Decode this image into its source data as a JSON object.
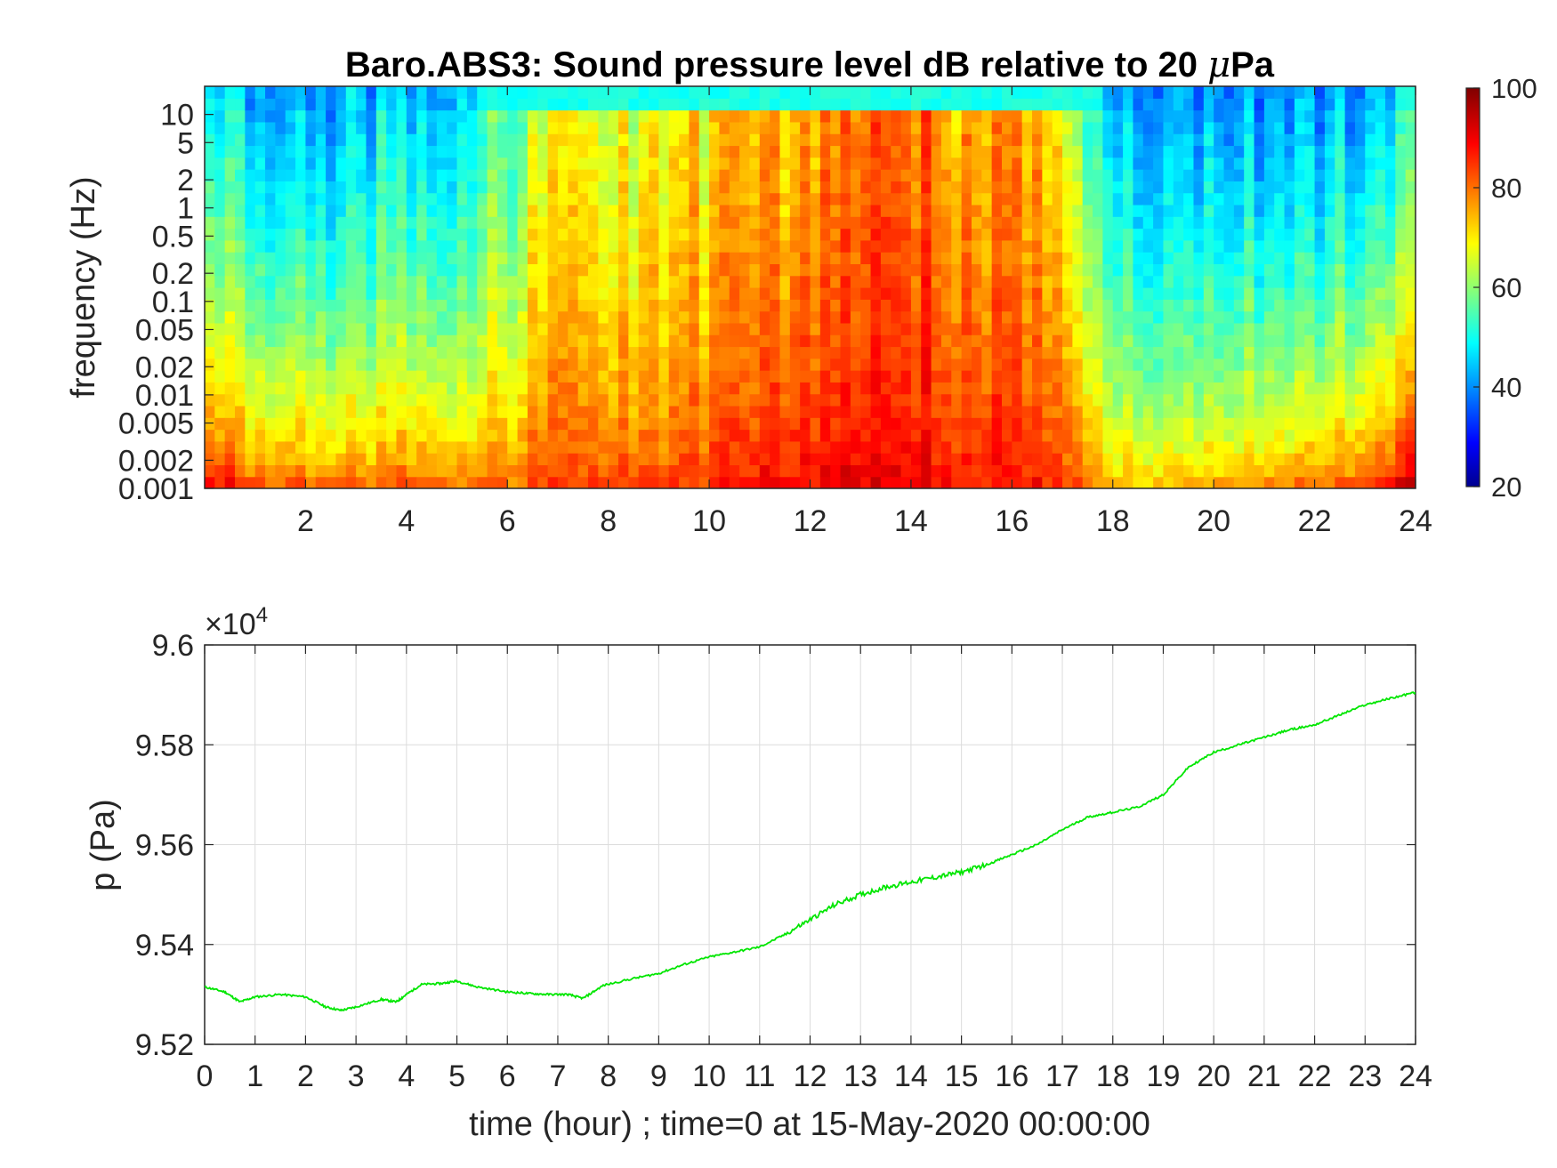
{
  "chart_data": [
    {
      "type": "heatmap",
      "title_main": "Baro.ABS3: Sound pressure level dB relative to 20 ",
      "title_mu": "μ",
      "title_unit": "Pa",
      "ylabel": "frequency (Hz)",
      "xlabel": "",
      "x_ticks": [
        "2",
        "4",
        "6",
        "8",
        "10",
        "12",
        "14",
        "16",
        "18",
        "20",
        "22",
        "24"
      ],
      "x_tick_values": [
        2,
        4,
        6,
        8,
        10,
        12,
        14,
        16,
        18,
        20,
        22,
        24
      ],
      "xlim": [
        0,
        24
      ],
      "y_scale": "log",
      "y_ticks": [
        "10",
        "5",
        "2",
        "1",
        "0.5",
        "0.2",
        "0.1",
        "0.05",
        "0.02",
        "0.01",
        "0.005",
        "0.002",
        "0.001"
      ],
      "y_tick_values": [
        10,
        5,
        2,
        1,
        0.5,
        0.2,
        0.1,
        0.05,
        0.02,
        0.01,
        0.005,
        0.002,
        0.001
      ],
      "ylim": [
        0.001,
        20
      ],
      "colorbar": {
        "ticks": [
          "100",
          "80",
          "60",
          "40",
          "20"
        ],
        "tick_values": [
          100,
          80,
          60,
          40,
          20
        ],
        "range": [
          20,
          100
        ],
        "colormap": "jet"
      },
      "hourly_overview": {
        "description_hours": [
          0,
          1,
          2,
          3,
          4,
          5,
          6,
          7,
          8,
          9,
          10,
          11,
          12,
          13,
          14,
          15,
          16,
          17,
          18,
          19,
          20,
          21,
          22,
          23,
          24
        ],
        "high_frequency_level_dB": [
          50,
          45,
          45,
          45,
          45,
          48,
          55,
          72,
          65,
          68,
          70,
          72,
          78,
          80,
          80,
          78,
          76,
          70,
          48,
          42,
          42,
          42,
          42,
          44,
          50
        ],
        "low_frequency_level_dB": [
          95,
          88,
          86,
          85,
          86,
          84,
          84,
          88,
          86,
          86,
          88,
          90,
          92,
          92,
          92,
          90,
          90,
          88,
          80,
          78,
          80,
          82,
          84,
          90,
          98
        ]
      }
    },
    {
      "type": "line",
      "ylabel": "p (Pa)",
      "xlabel": "time (hour) ; time=0 at 15-May-2020 00:00:00",
      "exponent_label": "×10",
      "exponent_power": "4",
      "x_ticks": [
        "0",
        "1",
        "2",
        "3",
        "4",
        "5",
        "6",
        "7",
        "8",
        "9",
        "10",
        "11",
        "12",
        "13",
        "14",
        "15",
        "16",
        "17",
        "18",
        "19",
        "20",
        "21",
        "22",
        "23",
        "24"
      ],
      "y_ticks": [
        "9.6",
        "9.58",
        "9.56",
        "9.54",
        "9.52"
      ],
      "y_tick_values": [
        96000,
        95800,
        95600,
        95400,
        95200
      ],
      "xlim": [
        0,
        24
      ],
      "ylim": [
        95200,
        96000
      ],
      "grid": true,
      "series": [
        {
          "color": "#00e600",
          "x": [
            0,
            0.4,
            0.7,
            1.0,
            1.5,
            2.0,
            2.4,
            2.7,
            3.0,
            3.5,
            3.8,
            4.0,
            4.3,
            4.7,
            5.0,
            5.4,
            6.0,
            6.4,
            6.8,
            7.2,
            7.5,
            7.9,
            8.5,
            9.0,
            9.5,
            10.0,
            10.5,
            11.0,
            11.5,
            12.0,
            12.5,
            13.0,
            13.5,
            14.0,
            14.5,
            15.0,
            15.5,
            16.0,
            16.5,
            17.0,
            17.5,
            18.0,
            18.5,
            19.0,
            19.5,
            20.0,
            20.5,
            21.0,
            21.5,
            22.0,
            22.5,
            23.0,
            23.5,
            24.0
          ],
          "y": [
            95315,
            95305,
            95285,
            95295,
            95300,
            95295,
            95275,
            95268,
            95275,
            95290,
            95285,
            95300,
            95320,
            95322,
            95327,
            95315,
            95305,
            95302,
            95300,
            95300,
            95292,
            95318,
            95332,
            95342,
            95360,
            95375,
            95385,
            95395,
            95420,
            95450,
            95480,
            95500,
            95515,
            95525,
            95535,
            95545,
            95560,
            95580,
            95600,
            95630,
            95655,
            95665,
            95675,
            95700,
            95755,
            95785,
            95800,
            95815,
            95830,
            95840,
            95860,
            95880,
            95893,
            95905
          ]
        }
      ]
    }
  ]
}
